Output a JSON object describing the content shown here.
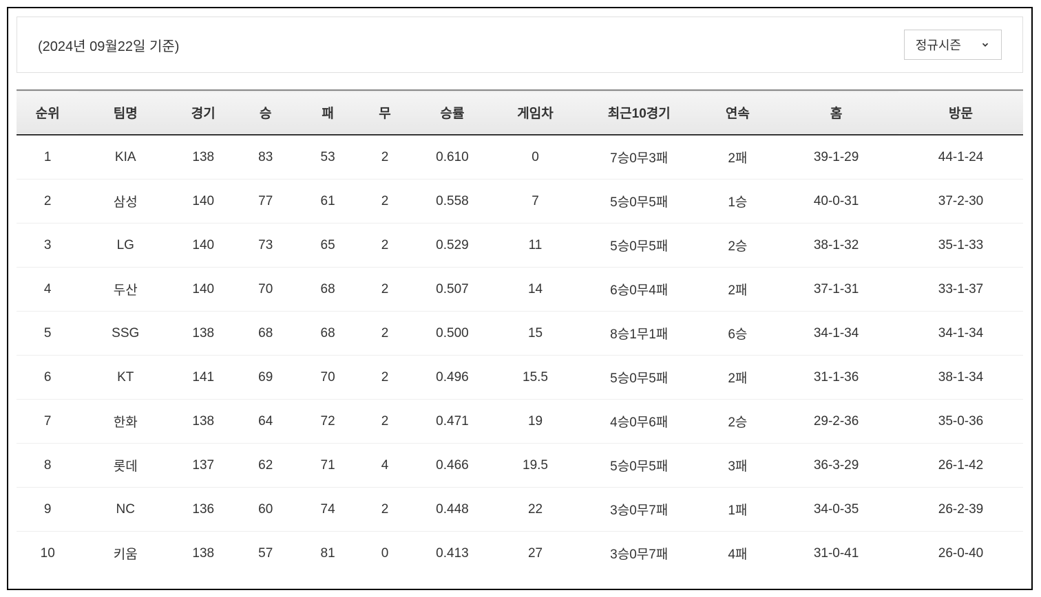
{
  "header": {
    "date_label": "(2024년 09월22일 기준)",
    "season_select": "정규시즌"
  },
  "table": {
    "type": "table",
    "background_color": "#ffffff",
    "header_bg_gradient_top": "#f5f5f5",
    "header_bg_gradient_bottom": "#e8e8e8",
    "header_border_top": "#888888",
    "header_border_bottom": "#333333",
    "row_border_color": "#eeeeee",
    "text_color": "#333333",
    "header_fontsize": 19,
    "cell_fontsize": 19,
    "columns": [
      {
        "key": "rank",
        "label": "순위",
        "class": "col-rank"
      },
      {
        "key": "team",
        "label": "팀명",
        "class": "col-team"
      },
      {
        "key": "games",
        "label": "경기",
        "class": "col-games"
      },
      {
        "key": "win",
        "label": "승",
        "class": "col-win"
      },
      {
        "key": "lose",
        "label": "패",
        "class": "col-lose"
      },
      {
        "key": "draw",
        "label": "무",
        "class": "col-draw"
      },
      {
        "key": "pct",
        "label": "승률",
        "class": "col-pct"
      },
      {
        "key": "gb",
        "label": "게임차",
        "class": "col-gb"
      },
      {
        "key": "last10",
        "label": "최근10경기",
        "class": "col-last10"
      },
      {
        "key": "streak",
        "label": "연속",
        "class": "col-streak"
      },
      {
        "key": "home",
        "label": "홈",
        "class": "col-home"
      },
      {
        "key": "away",
        "label": "방문",
        "class": "col-away"
      }
    ],
    "rows": [
      {
        "rank": "1",
        "team": "KIA",
        "games": "138",
        "win": "83",
        "lose": "53",
        "draw": "2",
        "pct": "0.610",
        "gb": "0",
        "last10": "7승0무3패",
        "streak": "2패",
        "home": "39-1-29",
        "away": "44-1-24"
      },
      {
        "rank": "2",
        "team": "삼성",
        "games": "140",
        "win": "77",
        "lose": "61",
        "draw": "2",
        "pct": "0.558",
        "gb": "7",
        "last10": "5승0무5패",
        "streak": "1승",
        "home": "40-0-31",
        "away": "37-2-30"
      },
      {
        "rank": "3",
        "team": "LG",
        "games": "140",
        "win": "73",
        "lose": "65",
        "draw": "2",
        "pct": "0.529",
        "gb": "11",
        "last10": "5승0무5패",
        "streak": "2승",
        "home": "38-1-32",
        "away": "35-1-33"
      },
      {
        "rank": "4",
        "team": "두산",
        "games": "140",
        "win": "70",
        "lose": "68",
        "draw": "2",
        "pct": "0.507",
        "gb": "14",
        "last10": "6승0무4패",
        "streak": "2패",
        "home": "37-1-31",
        "away": "33-1-37"
      },
      {
        "rank": "5",
        "team": "SSG",
        "games": "138",
        "win": "68",
        "lose": "68",
        "draw": "2",
        "pct": "0.500",
        "gb": "15",
        "last10": "8승1무1패",
        "streak": "6승",
        "home": "34-1-34",
        "away": "34-1-34"
      },
      {
        "rank": "6",
        "team": "KT",
        "games": "141",
        "win": "69",
        "lose": "70",
        "draw": "2",
        "pct": "0.496",
        "gb": "15.5",
        "last10": "5승0무5패",
        "streak": "2패",
        "home": "31-1-36",
        "away": "38-1-34"
      },
      {
        "rank": "7",
        "team": "한화",
        "games": "138",
        "win": "64",
        "lose": "72",
        "draw": "2",
        "pct": "0.471",
        "gb": "19",
        "last10": "4승0무6패",
        "streak": "2승",
        "home": "29-2-36",
        "away": "35-0-36"
      },
      {
        "rank": "8",
        "team": "롯데",
        "games": "137",
        "win": "62",
        "lose": "71",
        "draw": "4",
        "pct": "0.466",
        "gb": "19.5",
        "last10": "5승0무5패",
        "streak": "3패",
        "home": "36-3-29",
        "away": "26-1-42"
      },
      {
        "rank": "9",
        "team": "NC",
        "games": "136",
        "win": "60",
        "lose": "74",
        "draw": "2",
        "pct": "0.448",
        "gb": "22",
        "last10": "3승0무7패",
        "streak": "1패",
        "home": "34-0-35",
        "away": "26-2-39"
      },
      {
        "rank": "10",
        "team": "키움",
        "games": "138",
        "win": "57",
        "lose": "81",
        "draw": "0",
        "pct": "0.413",
        "gb": "27",
        "last10": "3승0무7패",
        "streak": "4패",
        "home": "31-0-41",
        "away": "26-0-40"
      }
    ]
  }
}
